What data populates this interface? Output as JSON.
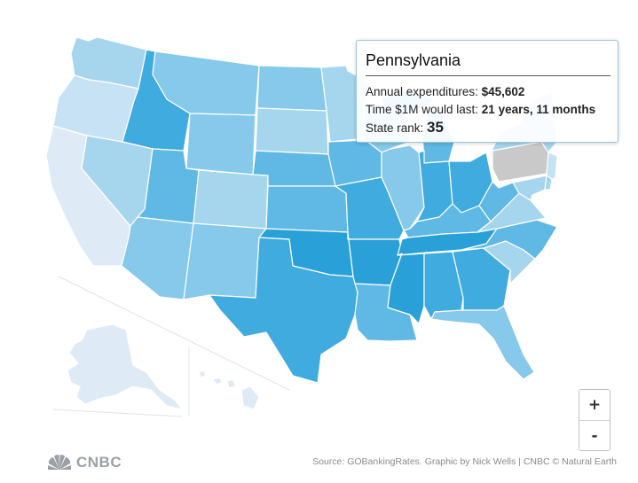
{
  "tooltip": {
    "state": "Pennsylvania",
    "expenditures_label": "Annual expenditures: ",
    "expenditures_value": "$45,602",
    "duration_label": "Time $1M would last: ",
    "duration_value": "21 years, 11 months",
    "rank_label": "State rank: ",
    "rank_value": "35"
  },
  "zoom": {
    "in_label": "+",
    "out_label": "-"
  },
  "footer": {
    "logo_text": "CNBC",
    "source": "Source: GOBankingRates. Graphic by Nick Wells | CNBC © Natural Earth"
  },
  "colors": {
    "selected": "#c9c9c9",
    "lightest": "#deebf7",
    "light": "#c6e2f4",
    "mid_light": "#a6d5ee",
    "mid": "#86c9eb",
    "mid_dark": "#5fb9e4",
    "dark": "#3fabde",
    "darkest": "#2aa0d8"
  },
  "states": [
    {
      "id": "WA",
      "color": "#a6d5ee"
    },
    {
      "id": "OR",
      "color": "#c6e2f4"
    },
    {
      "id": "CA",
      "color": "#deebf7"
    },
    {
      "id": "ID",
      "color": "#3fabde"
    },
    {
      "id": "NV",
      "color": "#a6d5ee"
    },
    {
      "id": "MT",
      "color": "#86c9eb"
    },
    {
      "id": "WY",
      "color": "#86c9eb"
    },
    {
      "id": "UT",
      "color": "#5fb9e4"
    },
    {
      "id": "AZ",
      "color": "#86c9eb"
    },
    {
      "id": "CO",
      "color": "#a6d5ee"
    },
    {
      "id": "NM",
      "color": "#86c9eb"
    },
    {
      "id": "ND",
      "color": "#86c9eb"
    },
    {
      "id": "SD",
      "color": "#a6d5ee"
    },
    {
      "id": "NE",
      "color": "#5fb9e4"
    },
    {
      "id": "KS",
      "color": "#5fb9e4"
    },
    {
      "id": "OK",
      "color": "#2aa0d8"
    },
    {
      "id": "TX",
      "color": "#3fabde"
    },
    {
      "id": "MN",
      "color": "#a6d5ee"
    },
    {
      "id": "IA",
      "color": "#5fb9e4"
    },
    {
      "id": "MO",
      "color": "#3fabde"
    },
    {
      "id": "AR",
      "color": "#2aa0d8"
    },
    {
      "id": "LA",
      "color": "#5fb9e4"
    },
    {
      "id": "WI",
      "color": "#86c9eb"
    },
    {
      "id": "IL",
      "color": "#86c9eb"
    },
    {
      "id": "MI",
      "color": "#5fb9e4"
    },
    {
      "id": "IN",
      "color": "#3fabde"
    },
    {
      "id": "OH",
      "color": "#3fabde"
    },
    {
      "id": "KY",
      "color": "#5fb9e4"
    },
    {
      "id": "TN",
      "color": "#2aa0d8"
    },
    {
      "id": "MS",
      "color": "#2aa0d8"
    },
    {
      "id": "AL",
      "color": "#3fabde"
    },
    {
      "id": "GA",
      "color": "#3fabde"
    },
    {
      "id": "FL",
      "color": "#86c9eb"
    },
    {
      "id": "SC",
      "color": "#a6d5ee"
    },
    {
      "id": "NC",
      "color": "#5fb9e4"
    },
    {
      "id": "VA",
      "color": "#a6d5ee"
    },
    {
      "id": "WV",
      "color": "#5fb9e4"
    },
    {
      "id": "PA",
      "color": "#c9c9c9"
    },
    {
      "id": "NY",
      "color": "#a6d5ee"
    },
    {
      "id": "NJ",
      "color": "#c6e2f4"
    },
    {
      "id": "MD",
      "color": "#a6d5ee"
    },
    {
      "id": "DE",
      "color": "#a6d5ee"
    },
    {
      "id": "AK",
      "color": "#deebf7"
    },
    {
      "id": "HI",
      "color": "#deebf7"
    }
  ]
}
